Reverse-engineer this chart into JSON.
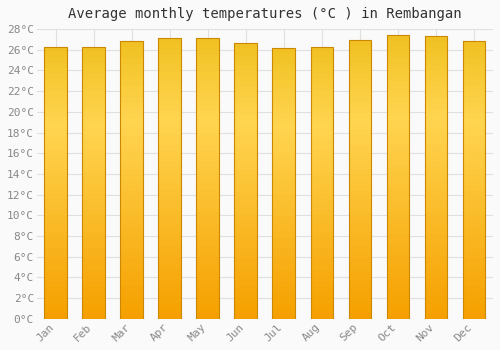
{
  "title": "Average monthly temperatures (°C ) in Rembangan",
  "months": [
    "Jan",
    "Feb",
    "Mar",
    "Apr",
    "May",
    "Jun",
    "Jul",
    "Aug",
    "Sep",
    "Oct",
    "Nov",
    "Dec"
  ],
  "values": [
    26.3,
    26.3,
    26.8,
    27.1,
    27.1,
    26.7,
    26.2,
    26.3,
    26.9,
    27.4,
    27.3,
    26.8
  ],
  "ylim": [
    0,
    28
  ],
  "ytick_step": 2,
  "bar_color_top": "#FFD060",
  "bar_color_bottom": "#F5A000",
  "bar_color_edge": "#CC8800",
  "background_color": "#FAFAFA",
  "grid_color": "#E0E0E0",
  "title_fontsize": 10,
  "tick_fontsize": 8,
  "font_family": "monospace",
  "bar_width": 0.6
}
